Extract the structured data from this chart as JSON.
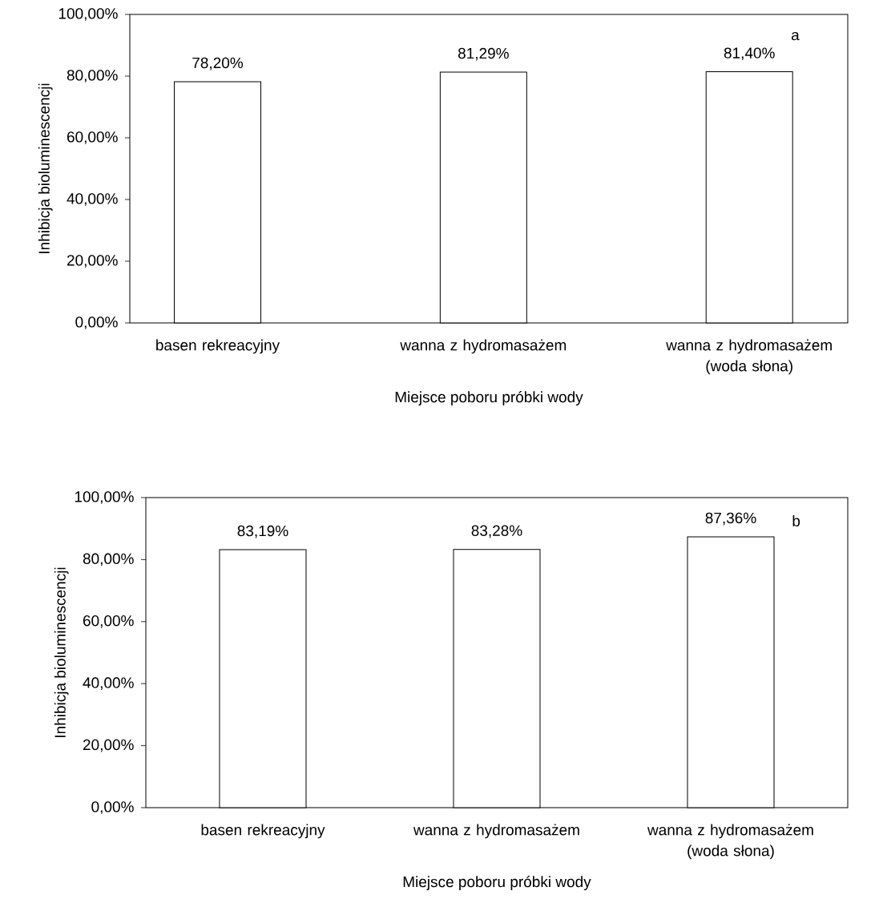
{
  "chart_data": [
    {
      "type": "bar",
      "categories": [
        "basen rekreacyjny",
        "wanna z hydromasażem",
        "wanna z hydromasażem (woda słona)"
      ],
      "values": [
        78.2,
        81.29,
        81.4
      ],
      "value_labels": [
        "78,20%",
        "81,29%",
        "81,40%"
      ],
      "color": "#ffffff",
      "xlabel": "Miejsce poboru próbki wody",
      "ylabel": "Inhibicja bioluminescencji",
      "ylim": [
        0,
        100
      ],
      "yticks": [
        {
          "value": 0,
          "label": "0,00%"
        },
        {
          "value": 20,
          "label": "20,00%"
        },
        {
          "value": 40,
          "label": "40,00%"
        },
        {
          "value": 60,
          "label": "60,00%"
        },
        {
          "value": 80,
          "label": "80,00%"
        },
        {
          "value": 100,
          "label": "100,00%"
        }
      ],
      "annotations": [
        "a"
      ],
      "grid": false
    },
    {
      "type": "bar",
      "categories": [
        "basen rekreacyjny",
        "wanna z hydromasażem",
        "wanna z hydromasażem (woda słona)"
      ],
      "values": [
        83.19,
        83.28,
        87.36
      ],
      "value_labels": [
        "83,19%",
        "83,28%",
        "87,36%"
      ],
      "color": "#ffffff",
      "xlabel": "Miejsce poboru próbki wody",
      "ylabel": "Inhibicja bioluminescencji",
      "ylim": [
        0,
        100
      ],
      "yticks": [
        {
          "value": 0,
          "label": "0,00%"
        },
        {
          "value": 20,
          "label": "20,00%"
        },
        {
          "value": 40,
          "label": "40,00%"
        },
        {
          "value": 60,
          "label": "60,00%"
        },
        {
          "value": 80,
          "label": "80,00%"
        },
        {
          "value": 100,
          "label": "100,00%"
        }
      ],
      "annotations": [
        "b"
      ],
      "grid": false
    }
  ]
}
